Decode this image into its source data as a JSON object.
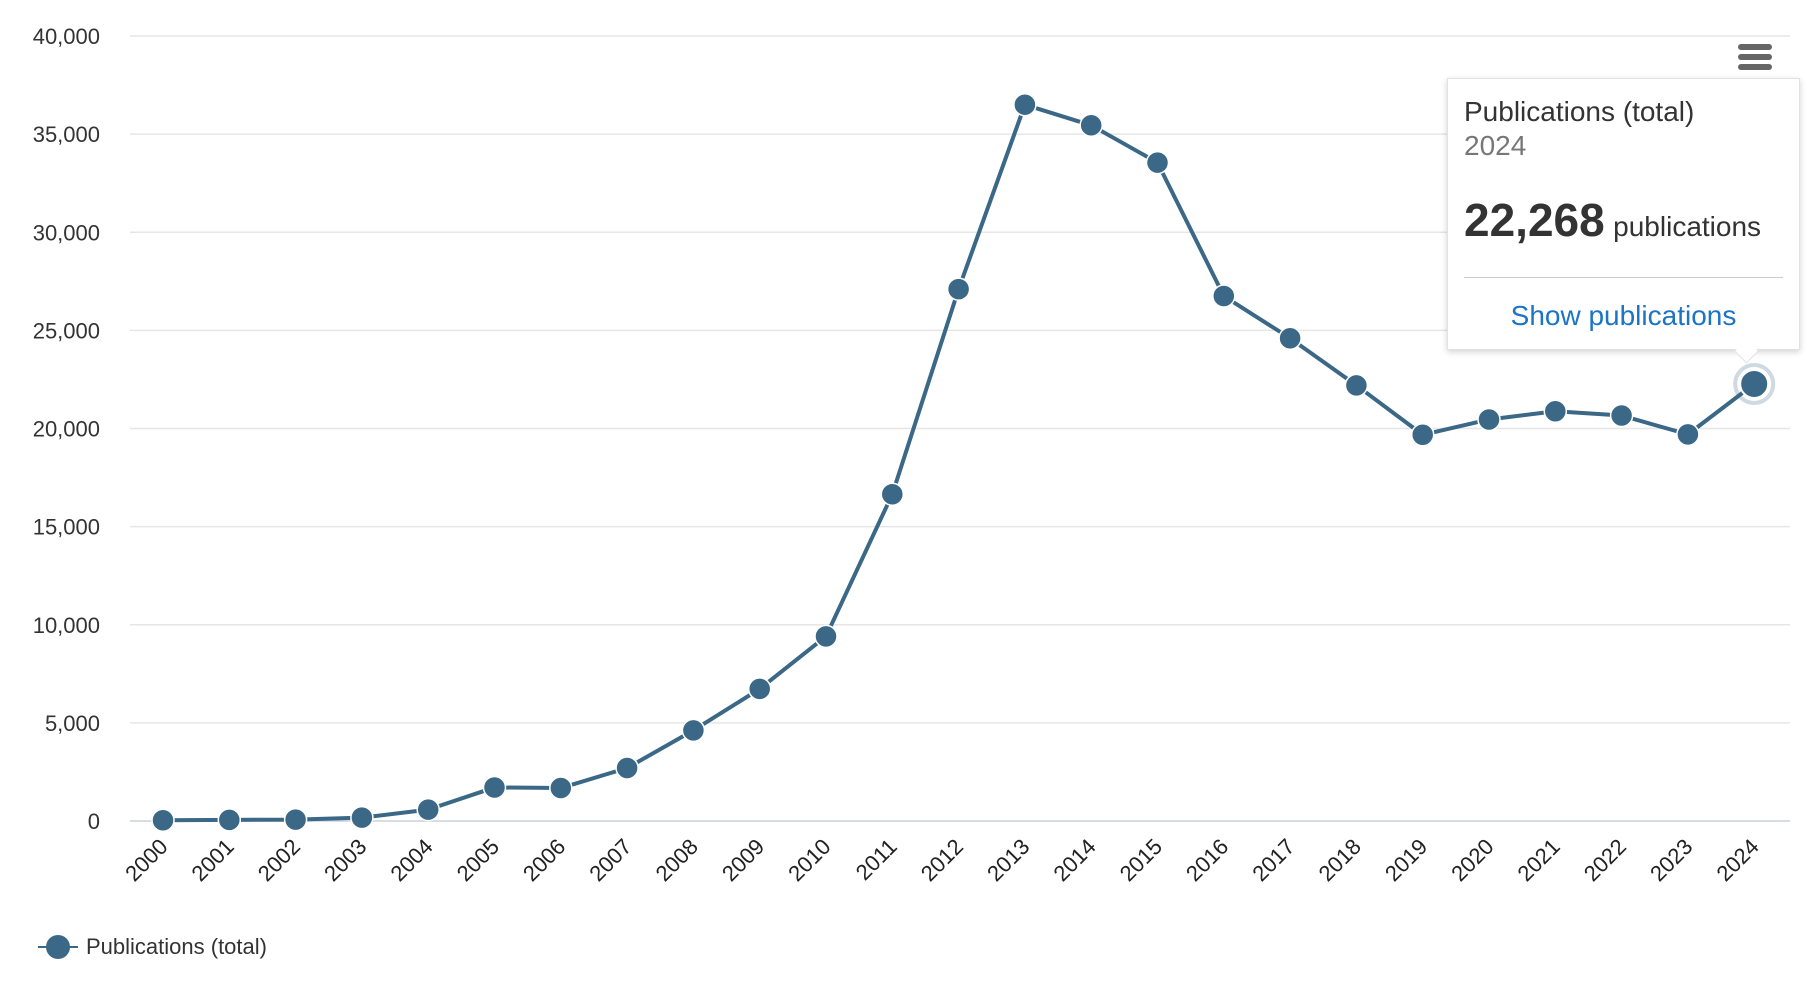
{
  "menu": {
    "icon": "hamburger-menu-icon"
  },
  "chart_data": {
    "type": "line",
    "title": "",
    "xlabel": "",
    "ylabel": "",
    "x": [
      "2000",
      "2001",
      "2002",
      "2003",
      "2004",
      "2005",
      "2006",
      "2007",
      "2008",
      "2009",
      "2010",
      "2011",
      "2012",
      "2013",
      "2014",
      "2015",
      "2016",
      "2017",
      "2018",
      "2019",
      "2020",
      "2021",
      "2022",
      "2023",
      "2024"
    ],
    "series": [
      {
        "name": "Publications (total)",
        "color": "#3a6886",
        "values": [
          40,
          60,
          70,
          170,
          580,
          1710,
          1680,
          2700,
          4620,
          6730,
          9410,
          16650,
          27100,
          36500,
          35450,
          33550,
          26750,
          24600,
          22200,
          19680,
          20460,
          20880,
          20660,
          19700,
          22268
        ]
      }
    ],
    "ylim": [
      0,
      40000
    ],
    "yticks": [
      0,
      5000,
      10000,
      15000,
      20000,
      25000,
      30000,
      35000,
      40000
    ],
    "ytick_labels": [
      "0",
      "5,000",
      "10,000",
      "15,000",
      "20,000",
      "25,000",
      "30,000",
      "35,000",
      "40,000"
    ],
    "grid": true,
    "legend": "bottom-left",
    "highlighted_index": 24
  },
  "legend": {
    "label": "Publications (total)"
  },
  "tooltip": {
    "series": "Publications (total)",
    "year": "2024",
    "value": "22,268",
    "unit": "publications",
    "link": "Show publications"
  }
}
